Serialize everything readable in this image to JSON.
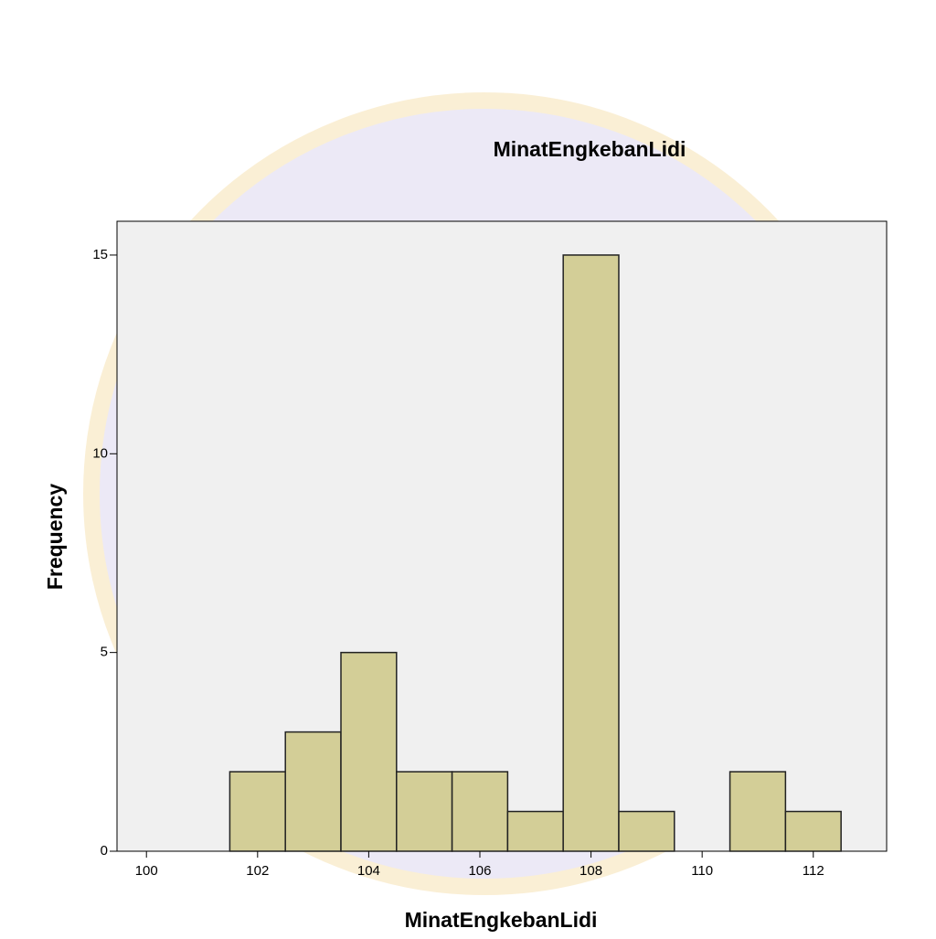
{
  "chart_data": {
    "type": "histogram",
    "title": "MinatEngkebanLidi",
    "x_label": "MinatEngkebanLidi",
    "y_label": "Frequency",
    "bins": [
      101.5,
      102.5,
      103.5,
      104.5,
      105.5,
      106.5,
      107.5,
      108.5,
      109.5,
      110.5,
      111.5,
      112.5
    ],
    "counts": [
      2,
      3,
      5,
      2,
      2,
      1,
      15,
      1,
      0,
      2,
      1
    ],
    "color": "#d3ce97",
    "xlim": [
      99.47,
      113.32
    ],
    "xticks": [
      100,
      102,
      104,
      106,
      108,
      110,
      112
    ],
    "ylim": [
      0,
      15.85
    ],
    "yticks": [
      0,
      5,
      10,
      15
    ]
  }
}
